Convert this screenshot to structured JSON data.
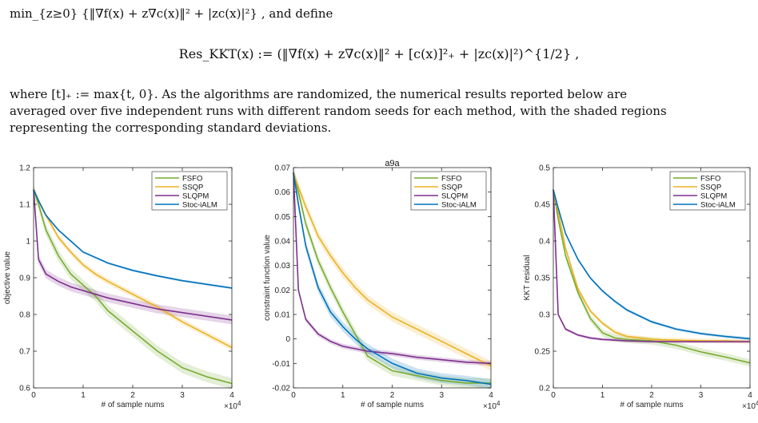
{
  "text": {
    "line1": "min_{z≥0} {‖∇f(x) + z∇c(x)‖² + |zc(x)|²} , and define",
    "equation": "Res_KKT(x) := (‖∇f(x) + z∇c(x)‖² + [c(x)]²₊ + |zc(x)|²)^{1/2} ,",
    "para_line1": "where  [t]₊  :=  max{t, 0}.   As the algorithms are randomized, the numerical results reported below are",
    "para_line2": "averaged over five independent runs with different random seeds for each method, with the shaded regions",
    "para_line3": "representing the corresponding standard deviations."
  },
  "colors": {
    "FSFO": "#77ac30",
    "SSQP": "#edb120",
    "SLQPM": "#7e2f8e",
    "Stoc-iALM": "#0072bd"
  },
  "chart_data": [
    {
      "type": "line",
      "title": "",
      "xlabel": "# of sample nums",
      "ylabel": "objective value",
      "x_exponent": "×10^4",
      "xlim": [
        0,
        4
      ],
      "ylim": [
        0.6,
        1.2
      ],
      "xticks": [
        "0",
        "1",
        "2",
        "3",
        "4"
      ],
      "yticks": [
        "0.6",
        "0.7",
        "0.8",
        "0.9",
        "1",
        "1.1",
        "1.2"
      ],
      "legend_position": "top-right",
      "x": [
        0,
        0.1,
        0.25,
        0.5,
        0.75,
        1,
        1.25,
        1.5,
        2,
        2.5,
        3,
        3.5,
        4
      ],
      "series": [
        {
          "name": "FSFO",
          "values": [
            1.14,
            1.1,
            1.03,
            0.96,
            0.91,
            0.88,
            0.85,
            0.81,
            0.755,
            0.7,
            0.655,
            0.63,
            0.612
          ],
          "band": 0.015
        },
        {
          "name": "SSQP",
          "values": [
            1.14,
            1.11,
            1.07,
            1.01,
            0.97,
            0.935,
            0.91,
            0.89,
            0.855,
            0.82,
            0.78,
            0.745,
            0.71
          ],
          "band": 0.008
        },
        {
          "name": "SLQPM",
          "values": [
            1.14,
            0.95,
            0.91,
            0.89,
            0.875,
            0.865,
            0.855,
            0.845,
            0.83,
            0.815,
            0.805,
            0.795,
            0.785
          ],
          "band": 0.012
        },
        {
          "name": "Stoc-iALM",
          "values": [
            1.14,
            1.11,
            1.07,
            1.03,
            1.0,
            0.97,
            0.955,
            0.94,
            0.92,
            0.905,
            0.892,
            0.882,
            0.872
          ],
          "band": 0.003
        }
      ]
    },
    {
      "type": "line",
      "title": "a9a",
      "xlabel": "# of sample nums",
      "ylabel": "constraint function value",
      "x_exponent": "×10^4",
      "xlim": [
        0,
        4
      ],
      "ylim": [
        -0.02,
        0.07
      ],
      "xticks": [
        "0",
        "1",
        "2",
        "3",
        "4"
      ],
      "yticks": [
        "-0.02",
        "-0.01",
        "0",
        "0.01",
        "0.02",
        "0.03",
        "0.04",
        "0.05",
        "0.06",
        "0.07"
      ],
      "legend_position": "top-right",
      "x": [
        0,
        0.1,
        0.25,
        0.5,
        0.75,
        1,
        1.25,
        1.5,
        2,
        2.5,
        3,
        3.5,
        4
      ],
      "series": [
        {
          "name": "FSFO",
          "values": [
            0.068,
            0.06,
            0.047,
            0.032,
            0.021,
            0.011,
            0.002,
            -0.007,
            -0.013,
            -0.015,
            -0.017,
            -0.018,
            -0.018
          ],
          "band": 0.002
        },
        {
          "name": "SSQP",
          "values": [
            0.068,
            0.062,
            0.054,
            0.042,
            0.034,
            0.027,
            0.021,
            0.016,
            0.009,
            0.004,
            -0.001,
            -0.006,
            -0.011
          ],
          "band": 0.002
        },
        {
          "name": "SLQPM",
          "values": [
            0.068,
            0.02,
            0.008,
            0.002,
            -0.001,
            -0.003,
            -0.004,
            -0.005,
            -0.006,
            -0.0075,
            -0.0085,
            -0.0095,
            -0.01
          ],
          "band": 0.001
        },
        {
          "name": "Stoc-iALM",
          "values": [
            0.068,
            0.055,
            0.038,
            0.021,
            0.011,
            0.005,
            0.0,
            -0.004,
            -0.01,
            -0.014,
            -0.016,
            -0.017,
            -0.0185
          ],
          "band": 0.002
        }
      ]
    },
    {
      "type": "line",
      "title": "",
      "xlabel": "# of sample nums",
      "ylabel": "KKT residual",
      "x_exponent": "×10^4",
      "xlim": [
        0,
        4
      ],
      "ylim": [
        0.2,
        0.5
      ],
      "xticks": [
        "0",
        "1",
        "2",
        "3",
        "4"
      ],
      "yticks": [
        "0.2",
        "0.25",
        "0.3",
        "0.35",
        "0.4",
        "0.45",
        "0.5"
      ],
      "legend_position": "top-right",
      "x": [
        0,
        0.1,
        0.25,
        0.5,
        0.75,
        1,
        1.25,
        1.5,
        2,
        2.5,
        3,
        3.5,
        4
      ],
      "series": [
        {
          "name": "FSFO",
          "values": [
            0.47,
            0.43,
            0.38,
            0.33,
            0.295,
            0.275,
            0.268,
            0.266,
            0.264,
            0.258,
            0.249,
            0.242,
            0.234
          ],
          "band": 0.005
        },
        {
          "name": "SSQP",
          "values": [
            0.47,
            0.44,
            0.39,
            0.335,
            0.305,
            0.288,
            0.276,
            0.27,
            0.266,
            0.265,
            0.264,
            0.264,
            0.263
          ],
          "band": 0.003
        },
        {
          "name": "SLQPM",
          "values": [
            0.47,
            0.3,
            0.28,
            0.272,
            0.268,
            0.266,
            0.265,
            0.264,
            0.263,
            0.263,
            0.263,
            0.263,
            0.263
          ],
          "band": 0.002
        },
        {
          "name": "Stoc-iALM",
          "values": [
            0.47,
            0.445,
            0.41,
            0.375,
            0.35,
            0.332,
            0.318,
            0.306,
            0.29,
            0.28,
            0.274,
            0.27,
            0.267
          ],
          "band": 0.002
        }
      ]
    }
  ]
}
